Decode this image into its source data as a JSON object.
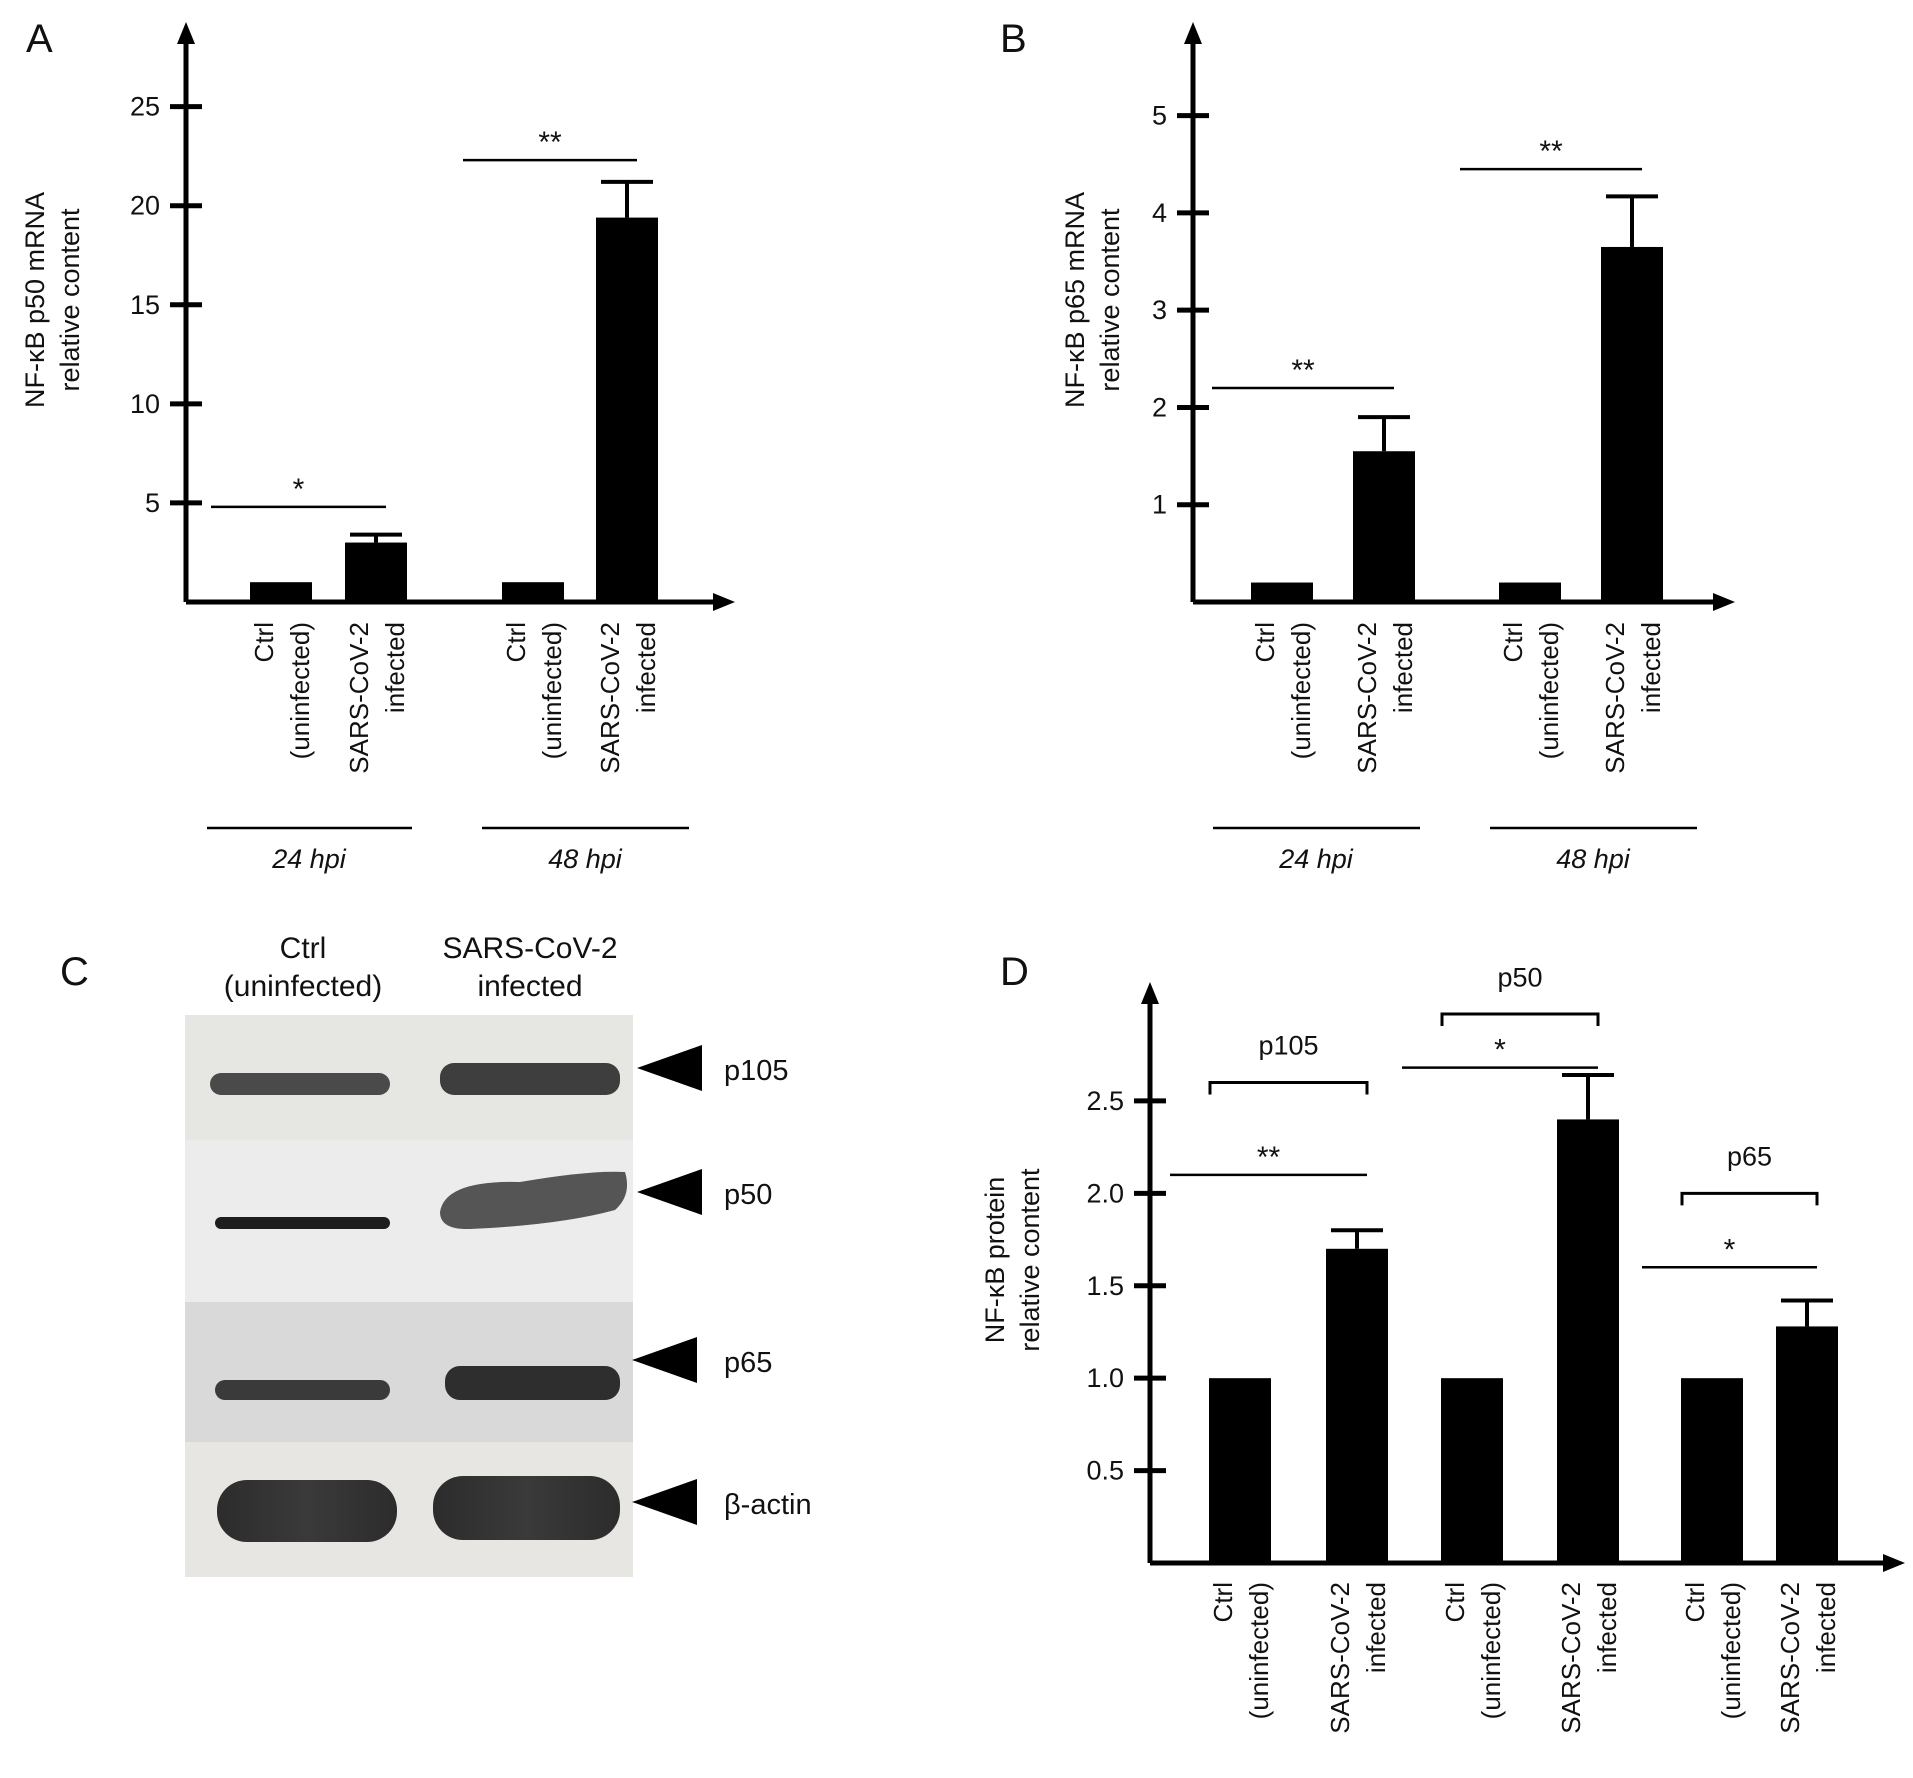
{
  "panels": {
    "A": "A",
    "B": "B",
    "C": "C",
    "D": "D"
  },
  "chart_data": [
    {
      "id": "A",
      "type": "bar",
      "ylabel_lines": [
        "NF-κB p50 mRNA",
        "relative content"
      ],
      "yticks": [
        "5",
        "10",
        "15",
        "20",
        "25"
      ],
      "ylim": [
        0,
        27
      ],
      "categories": [
        "Ctrl (uninfected)",
        "SARS-CoV-2 infected",
        "Ctrl (uninfected)",
        "SARS-CoV-2 infected"
      ],
      "category_lines": [
        [
          "Ctrl",
          "(uninfected)"
        ],
        [
          "SARS-CoV-2",
          "infected"
        ],
        [
          "Ctrl",
          "(uninfected)"
        ],
        [
          "SARS-CoV-2",
          "infected"
        ]
      ],
      "groups": [
        "24 hpi",
        "48 hpi"
      ],
      "values": [
        1.0,
        3.0,
        1.0,
        19.4
      ],
      "errors": [
        0,
        0.4,
        0,
        1.8
      ],
      "significance": [
        {
          "label": "*",
          "from": 0,
          "to": 1,
          "y": 4.8
        },
        {
          "label": "**",
          "from": 2,
          "to": 3,
          "y": 22.3
        }
      ]
    },
    {
      "id": "B",
      "type": "bar",
      "ylabel_lines": [
        "NF-κB p65 mRNA",
        "relative content"
      ],
      "yticks": [
        "1",
        "2",
        "3",
        "4",
        "5"
      ],
      "ylim": [
        0,
        5.5
      ],
      "categories": [
        "Ctrl (uninfected)",
        "SARS-CoV-2 infected",
        "Ctrl (uninfected)",
        "SARS-CoV-2 infected"
      ],
      "category_lines": [
        [
          "Ctrl",
          "(uninfected)"
        ],
        [
          "SARS-CoV-2",
          "infected"
        ],
        [
          "Ctrl",
          "(uninfected)"
        ],
        [
          "SARS-CoV-2",
          "infected"
        ]
      ],
      "groups": [
        "24 hpi",
        "48 hpi"
      ],
      "values": [
        0.2,
        1.55,
        0.2,
        3.65
      ],
      "errors": [
        0,
        0.35,
        0,
        0.52
      ],
      "significance": [
        {
          "label": "**",
          "from": 0,
          "to": 1,
          "y": 2.2
        },
        {
          "label": "**",
          "from": 2,
          "to": 3,
          "y": 4.45
        }
      ]
    },
    {
      "id": "D",
      "type": "bar",
      "ylabel_lines": [
        "NF-κB protein",
        "relative content"
      ],
      "yticks": [
        "0.5",
        "1.0",
        "1.5",
        "2.0",
        "2.5"
      ],
      "ylim": [
        0,
        2.9
      ],
      "categories": [
        "Ctrl (uninfected)",
        "SARS-CoV-2 infected",
        "Ctrl (uninfected)",
        "SARS-CoV-2 infected",
        "Ctrl (uninfected)",
        "SARS-CoV-2 infected"
      ],
      "category_lines": [
        [
          "Ctrl",
          "(uninfected)"
        ],
        [
          "SARS-CoV-2",
          "infected"
        ],
        [
          "Ctrl",
          "(uninfected)"
        ],
        [
          "SARS-CoV-2",
          "infected"
        ],
        [
          "Ctrl",
          "(uninfected)"
        ],
        [
          "SARS-CoV-2",
          "infected"
        ]
      ],
      "groups": [
        "p105",
        "p50",
        "p65"
      ],
      "values": [
        1.0,
        1.7,
        1.0,
        2.4,
        1.0,
        1.28
      ],
      "errors": [
        0,
        0.1,
        0,
        0.24,
        0,
        0.14
      ],
      "significance": [
        {
          "label": "**",
          "from": 0,
          "to": 1,
          "y": 2.1
        },
        {
          "label": "*",
          "from": 2,
          "to": 3,
          "y": 2.68
        },
        {
          "label": "*",
          "from": 4,
          "to": 5,
          "y": 1.6
        }
      ]
    }
  ],
  "blot": {
    "columns": [
      [
        "Ctrl",
        "(uninfected)"
      ],
      [
        "SARS-CoV-2",
        "infected"
      ]
    ],
    "proteins": [
      "p105",
      "p50",
      "p65",
      "β-actin"
    ]
  }
}
